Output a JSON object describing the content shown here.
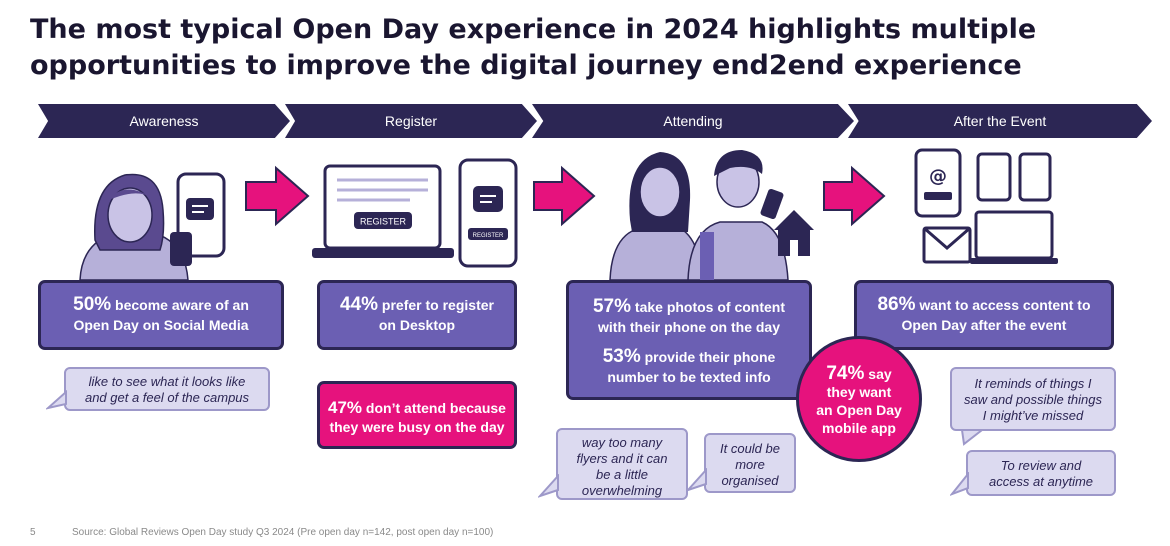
{
  "title": {
    "line1": "The most typical Open Day experience in 2024 highlights multiple",
    "line2": "opportunities to improve the digital journey end2end experience"
  },
  "stages": [
    "Awareness",
    "Register",
    "Attending",
    "After the Event"
  ],
  "register_labels": {
    "desktop": "REGISTER",
    "phone": "REGISTER"
  },
  "stats": {
    "awareness": {
      "pct": "50%",
      "l1": " become aware of an",
      "l2": "Open Day on Social Media"
    },
    "register": {
      "pct": "44%",
      "l1": " prefer to register",
      "l2": "on Desktop"
    },
    "busy": {
      "pct": "47%",
      "l1": " don’t attend because",
      "l2": "they were busy on the day"
    },
    "attend_photos": {
      "pct": "57%",
      "l1": " take photos of content",
      "l2": "with their phone on the day"
    },
    "attend_phone": {
      "pct": "53%",
      "l1": " provide their phone",
      "l2": "number to be texted info"
    },
    "after": {
      "pct": "86%",
      "l1": " want to access content to",
      "l2": "Open Day after the event"
    },
    "app": {
      "pct": "74%",
      "l1": " say",
      "l2": "they want",
      "l3": "an Open Day",
      "l4": "mobile app"
    }
  },
  "quotes": {
    "awareness": [
      "like to see what it looks like",
      "and get a feel of the campus"
    ],
    "flyers": [
      "way too many",
      "flyers and it can",
      "be a little",
      "overwhelming"
    ],
    "organised": [
      "It could be",
      "more",
      "organised"
    ],
    "reminds": [
      "It reminds of things I",
      "saw and possible things",
      "I might’ve missed"
    ],
    "review": [
      "To review and",
      "access at anytime"
    ]
  },
  "footer": {
    "page": "5",
    "source": "Source: Global Reviews Open Day study Q3 2024 (Pre open day n=142, post open day n=100)"
  },
  "colors": {
    "navy": "#2c2654",
    "purple": "#6b5fb3",
    "pink": "#e6127d",
    "lilac": "#dcdaf0",
    "illustration": "#b6b0d9"
  }
}
